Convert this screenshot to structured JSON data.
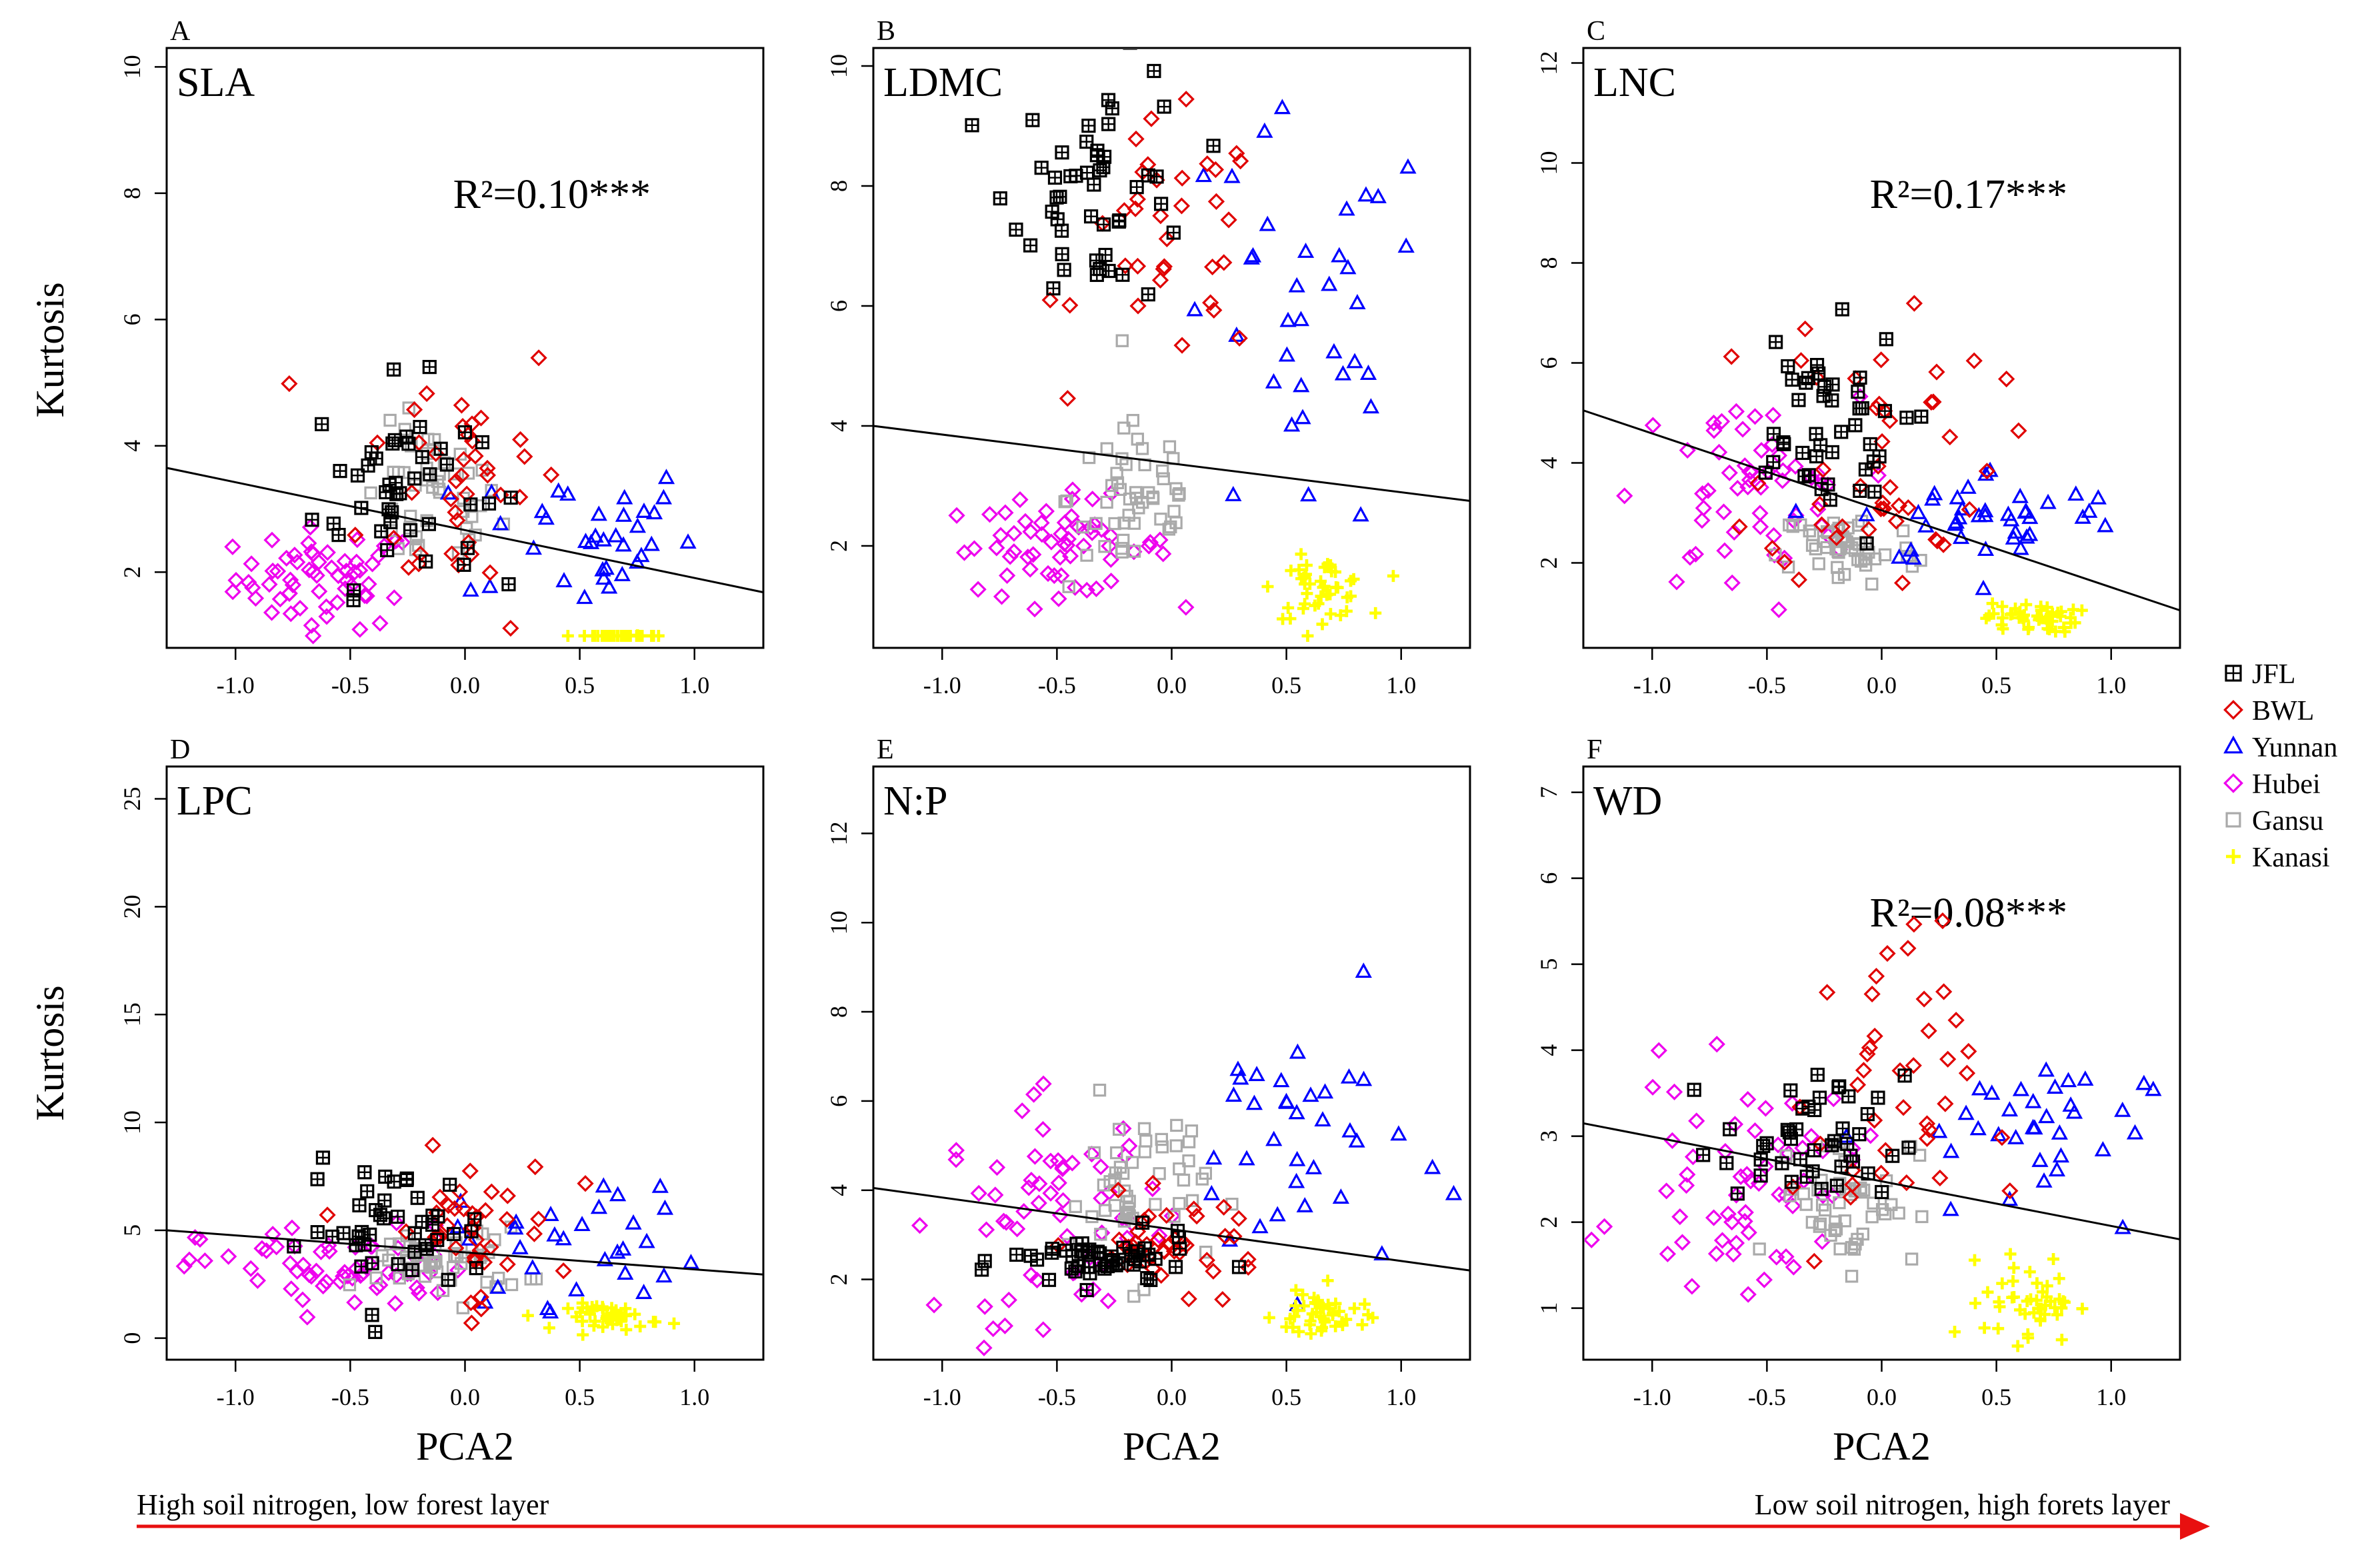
{
  "figure": {
    "common_xlabel": "PCA2",
    "common_ylabel": "Kurtosis",
    "gradient_left_label": "High soil nitrogen, low forest layer",
    "gradient_right_label": "Low soil nitrogen, high forets layer"
  },
  "legend": [
    {
      "name": "JFL",
      "marker": "square-plus",
      "color": "#000000"
    },
    {
      "name": "BWL",
      "marker": "diamond",
      "color": "#e00000"
    },
    {
      "name": "Yunnan",
      "marker": "triangle",
      "color": "#0000ff"
    },
    {
      "name": "Hubei",
      "marker": "diamond",
      "color": "#ee00ee"
    },
    {
      "name": "Gansu",
      "marker": "square",
      "color": "#aaaaaa"
    },
    {
      "name": "Kanasi",
      "marker": "plus",
      "color": "#ffff00"
    }
  ],
  "chart_data": [
    {
      "panel": "A",
      "title": "SLA",
      "type": "scatter",
      "annotation": "R²=0.10***",
      "xlabel": "",
      "ylabel": "Kurtosis",
      "xlim": [
        -1.3,
        1.3
      ],
      "ylim": [
        0.8,
        10.3
      ],
      "xticks": [
        "-1.0",
        "-0.5",
        "0.0",
        "0.5",
        "1.0"
      ],
      "yticks": [
        "2",
        "4",
        "6",
        "8",
        "10"
      ],
      "regression": {
        "x": [
          -1.3,
          1.3
        ],
        "y": [
          3.65,
          1.68
        ]
      },
      "clusters": [
        {
          "name": "JFL",
          "cx": -0.3,
          "cy": 3.4,
          "sx": 0.18,
          "sy": 0.8,
          "n": 45
        },
        {
          "name": "BWL",
          "cx": 0.0,
          "cy": 3.6,
          "sx": 0.22,
          "sy": 1.2,
          "n": 40
        },
        {
          "name": "Yunnan",
          "cx": 0.5,
          "cy": 2.6,
          "sx": 0.25,
          "sy": 0.6,
          "n": 35
        },
        {
          "name": "Hubei",
          "cx": -0.6,
          "cy": 1.9,
          "sx": 0.2,
          "sy": 0.4,
          "n": 60
        },
        {
          "name": "Gansu",
          "cx": -0.15,
          "cy": 3.1,
          "sx": 0.15,
          "sy": 0.6,
          "n": 45
        },
        {
          "name": "Kanasi",
          "cx": 0.68,
          "cy": 0.72,
          "sx": 0.08,
          "sy": 0.12,
          "n": 40
        }
      ]
    },
    {
      "panel": "B",
      "title": "LDMC",
      "type": "scatter",
      "annotation": "",
      "xlabel": "",
      "ylabel": "",
      "xlim": [
        -1.3,
        1.3
      ],
      "ylim": [
        0.3,
        10.3
      ],
      "xticks": [
        "-1.0",
        "-0.5",
        "0.0",
        "0.5",
        "1.0"
      ],
      "yticks": [
        "2",
        "4",
        "6",
        "8",
        "10"
      ],
      "regression": {
        "x": [
          -1.3,
          1.3
        ],
        "y": [
          4.0,
          2.75
        ]
      },
      "clusters": [
        {
          "name": "JFL",
          "cx": -0.3,
          "cy": 8.0,
          "sx": 0.2,
          "sy": 1.0,
          "n": 50
        },
        {
          "name": "BWL",
          "cx": 0.0,
          "cy": 7.0,
          "sx": 0.2,
          "sy": 1.0,
          "n": 35
        },
        {
          "name": "Yunnan",
          "cx": 0.55,
          "cy": 5.5,
          "sx": 0.3,
          "sy": 1.8,
          "n": 35
        },
        {
          "name": "Hubei",
          "cx": -0.5,
          "cy": 2.0,
          "sx": 0.25,
          "sy": 0.4,
          "n": 60
        },
        {
          "name": "Gansu",
          "cx": -0.15,
          "cy": 2.8,
          "sx": 0.15,
          "sy": 0.8,
          "n": 50
        },
        {
          "name": "Kanasi",
          "cx": 0.65,
          "cy": 1.3,
          "sx": 0.1,
          "sy": 0.25,
          "n": 45
        }
      ]
    },
    {
      "panel": "C",
      "title": "LNC",
      "type": "scatter",
      "annotation": "R²=0.17***",
      "xlabel": "",
      "ylabel": "",
      "xlim": [
        -1.3,
        1.3
      ],
      "ylim": [
        0.3,
        12.3
      ],
      "xticks": [
        "-1.0",
        "-0.5",
        "0.0",
        "0.5",
        "1.0"
      ],
      "yticks": [
        "2",
        "4",
        "6",
        "8",
        "10",
        "12"
      ],
      "regression": {
        "x": [
          -1.3,
          1.3
        ],
        "y": [
          5.05,
          1.05
        ]
      },
      "clusters": [
        {
          "name": "JFL",
          "cx": -0.3,
          "cy": 4.5,
          "sx": 0.2,
          "sy": 1.1,
          "n": 45
        },
        {
          "name": "BWL",
          "cx": 0.0,
          "cy": 4.5,
          "sx": 0.25,
          "sy": 1.5,
          "n": 45
        },
        {
          "name": "Yunnan",
          "cx": 0.5,
          "cy": 2.9,
          "sx": 0.3,
          "sy": 0.5,
          "n": 40
        },
        {
          "name": "Hubei",
          "cx": -0.6,
          "cy": 3.3,
          "sx": 0.25,
          "sy": 1.0,
          "n": 55
        },
        {
          "name": "Gansu",
          "cx": -0.15,
          "cy": 2.3,
          "sx": 0.15,
          "sy": 0.4,
          "n": 50
        },
        {
          "name": "Kanasi",
          "cx": 0.65,
          "cy": 0.9,
          "sx": 0.1,
          "sy": 0.15,
          "n": 45
        }
      ]
    },
    {
      "panel": "D",
      "title": "LPC",
      "type": "scatter",
      "annotation": "",
      "xlabel": "PCA2",
      "ylabel": "Kurtosis",
      "xlim": [
        -1.3,
        1.3
      ],
      "ylim": [
        -1.0,
        26.5
      ],
      "xticks": [
        "-1.0",
        "-0.5",
        "0.0",
        "0.5",
        "1.0"
      ],
      "yticks": [
        "0",
        "5",
        "10",
        "15",
        "20",
        "25"
      ],
      "regression": {
        "x": [
          -1.3,
          1.3
        ],
        "y": [
          5.0,
          2.95
        ]
      },
      "clusters": [
        {
          "name": "JFL",
          "cx": -0.3,
          "cy": 5.0,
          "sx": 0.2,
          "sy": 1.5,
          "n": 45
        },
        {
          "name": "BWL",
          "cx": 0.0,
          "cy": 5.0,
          "sx": 0.2,
          "sy": 1.8,
          "n": 40
        },
        {
          "name": "Yunnan",
          "cx": 0.55,
          "cy": 4.5,
          "sx": 0.3,
          "sy": 1.5,
          "n": 30
        },
        {
          "name": "Hubei",
          "cx": -0.55,
          "cy": 3.2,
          "sx": 0.3,
          "sy": 1.0,
          "n": 60
        },
        {
          "name": "Gansu",
          "cx": -0.1,
          "cy": 3.5,
          "sx": 0.18,
          "sy": 0.8,
          "n": 50
        },
        {
          "name": "Kanasi",
          "cx": 0.65,
          "cy": 1.0,
          "sx": 0.1,
          "sy": 0.3,
          "n": 45
        }
      ]
    },
    {
      "panel": "E",
      "title": "N:P",
      "type": "scatter",
      "annotation": "",
      "xlabel": "PCA2",
      "ylabel": "",
      "xlim": [
        -1.3,
        1.3
      ],
      "ylim": [
        0.2,
        13.5
      ],
      "xticks": [
        "-1.0",
        "-0.5",
        "0.0",
        "0.5",
        "1.0"
      ],
      "yticks": [
        "2",
        "4",
        "6",
        "8",
        "10",
        "12"
      ],
      "regression": {
        "x": [
          -1.3,
          1.3
        ],
        "y": [
          4.05,
          2.2
        ]
      },
      "clusters": [
        {
          "name": "JFL",
          "cx": -0.3,
          "cy": 2.4,
          "sx": 0.2,
          "sy": 0.3,
          "n": 50
        },
        {
          "name": "BWL",
          "cx": 0.0,
          "cy": 2.8,
          "sx": 0.2,
          "sy": 0.5,
          "n": 40
        },
        {
          "name": "Yunnan",
          "cx": 0.55,
          "cy": 5.0,
          "sx": 0.25,
          "sy": 1.5,
          "n": 35
        },
        {
          "name": "Hubei",
          "cx": -0.5,
          "cy": 3.5,
          "sx": 0.25,
          "sy": 1.2,
          "n": 60
        },
        {
          "name": "Gansu",
          "cx": -0.15,
          "cy": 4.0,
          "sx": 0.15,
          "sy": 1.0,
          "n": 50
        },
        {
          "name": "Kanasi",
          "cx": 0.65,
          "cy": 1.2,
          "sx": 0.1,
          "sy": 0.3,
          "n": 45
        }
      ]
    },
    {
      "panel": "F",
      "title": "WD",
      "type": "scatter",
      "annotation": "R²=0.08***",
      "xlabel": "PCA2",
      "ylabel": "",
      "xlim": [
        -1.3,
        1.3
      ],
      "ylim": [
        0.4,
        7.3
      ],
      "xticks": [
        "-1.0",
        "-0.5",
        "0.0",
        "0.5",
        "1.0"
      ],
      "yticks": [
        "1",
        "2",
        "3",
        "4",
        "5",
        "6",
        "7"
      ],
      "regression": {
        "x": [
          -1.3,
          1.3
        ],
        "y": [
          3.15,
          1.8
        ]
      },
      "clusters": [
        {
          "name": "JFL",
          "cx": -0.3,
          "cy": 2.9,
          "sx": 0.2,
          "sy": 0.4,
          "n": 45
        },
        {
          "name": "BWL",
          "cx": 0.0,
          "cy": 3.4,
          "sx": 0.2,
          "sy": 1.0,
          "n": 40
        },
        {
          "name": "Yunnan",
          "cx": 0.55,
          "cy": 3.0,
          "sx": 0.3,
          "sy": 0.5,
          "n": 35
        },
        {
          "name": "Hubei",
          "cx": -0.6,
          "cy": 2.5,
          "sx": 0.25,
          "sy": 0.6,
          "n": 60
        },
        {
          "name": "Gansu",
          "cx": -0.15,
          "cy": 2.3,
          "sx": 0.15,
          "sy": 0.4,
          "n": 50
        },
        {
          "name": "Kanasi",
          "cx": 0.65,
          "cy": 1.1,
          "sx": 0.1,
          "sy": 0.25,
          "n": 45
        }
      ]
    }
  ]
}
